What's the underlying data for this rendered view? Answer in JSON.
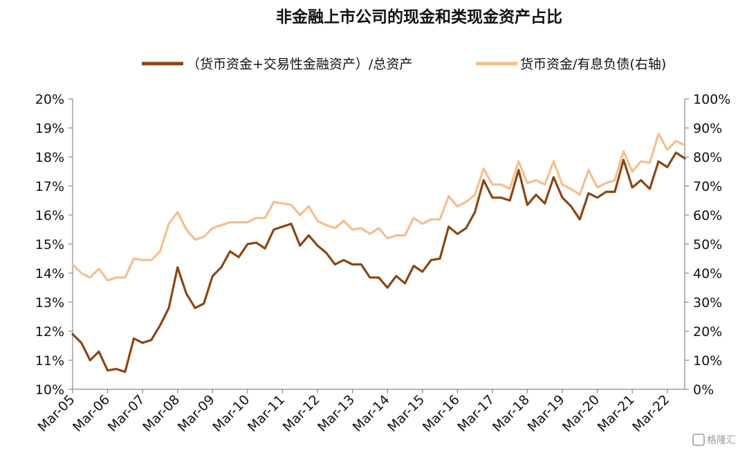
{
  "chart_data": {
    "type": "line",
    "title": "非金融上市公司的现金和类现金资产占比",
    "x_tick_labels": [
      "Mar-05",
      "Mar-06",
      "Mar-07",
      "Mar-08",
      "Mar-09",
      "Mar-10",
      "Mar-11",
      "Mar-12",
      "Mar-13",
      "Mar-14",
      "Mar-15",
      "Mar-16",
      "Mar-17",
      "Mar-18",
      "Mar-19",
      "Mar-20",
      "Mar-21",
      "Mar-22"
    ],
    "y_left": {
      "ylim": [
        10,
        20
      ],
      "ticks": [
        "10%",
        "11%",
        "12%",
        "13%",
        "14%",
        "15%",
        "16%",
        "17%",
        "18%",
        "19%",
        "20%"
      ]
    },
    "y_right": {
      "ylim": [
        0,
        100
      ],
      "ticks": [
        "0%",
        "10%",
        "20%",
        "30%",
        "40%",
        "50%",
        "60%",
        "70%",
        "80%",
        "90%",
        "100%"
      ]
    },
    "grid": false,
    "legend_position": "top",
    "quarter_count": 71,
    "series": [
      {
        "name": "（货币资金+交易性金融资产）/总资产",
        "axis": "left",
        "color": "#8B4513",
        "values": [
          11.9,
          11.6,
          11.0,
          11.3,
          10.65,
          10.7,
          10.6,
          11.75,
          11.6,
          11.7,
          12.2,
          12.8,
          14.2,
          13.3,
          12.8,
          12.95,
          13.9,
          14.2,
          14.75,
          14.55,
          15.0,
          15.05,
          14.85,
          15.5,
          15.6,
          15.7,
          14.95,
          15.3,
          14.95,
          14.7,
          14.3,
          14.45,
          14.3,
          14.3,
          13.85,
          13.85,
          13.5,
          13.9,
          13.65,
          14.25,
          14.05,
          14.45,
          14.5,
          15.6,
          15.35,
          15.55,
          16.1,
          17.2,
          16.6,
          16.6,
          16.5,
          17.55,
          16.35,
          16.7,
          16.4,
          17.3,
          16.6,
          16.3,
          15.85,
          16.75,
          16.6,
          16.8,
          16.8,
          17.9,
          16.95,
          17.2,
          16.9,
          17.85,
          17.65,
          18.15,
          17.95
        ]
      },
      {
        "name": "货币资金/有息负债(右轴)",
        "axis": "right",
        "color": "#F5BE8C",
        "values": [
          43,
          40,
          38.5,
          41.5,
          37.5,
          38.5,
          38.5,
          45,
          44.5,
          44.5,
          47.5,
          57,
          61,
          55,
          51.5,
          52.5,
          55.5,
          56.5,
          57.5,
          57.5,
          57.5,
          59,
          59,
          64.5,
          64,
          63.5,
          60,
          63,
          58,
          56.5,
          55.5,
          58,
          55,
          55.5,
          53.5,
          55.5,
          52,
          53,
          53,
          59,
          57,
          58.5,
          58.5,
          66.5,
          63,
          64.5,
          67,
          76,
          70.5,
          70.5,
          69,
          78.5,
          71,
          72,
          70.5,
          78.5,
          70.5,
          69,
          67,
          75.5,
          69.5,
          71,
          72,
          82,
          75,
          78.5,
          78,
          88,
          82.5,
          85.5,
          84
        ]
      }
    ]
  },
  "legend": {
    "item1": "（货币资金+交易性金融资产）/总资产",
    "item2": "货币资金/有息负债(右轴)"
  },
  "watermark": "格隆汇",
  "colors": {
    "series1": "#8B4513",
    "series2": "#F5BE8C",
    "axis": "#888888"
  }
}
